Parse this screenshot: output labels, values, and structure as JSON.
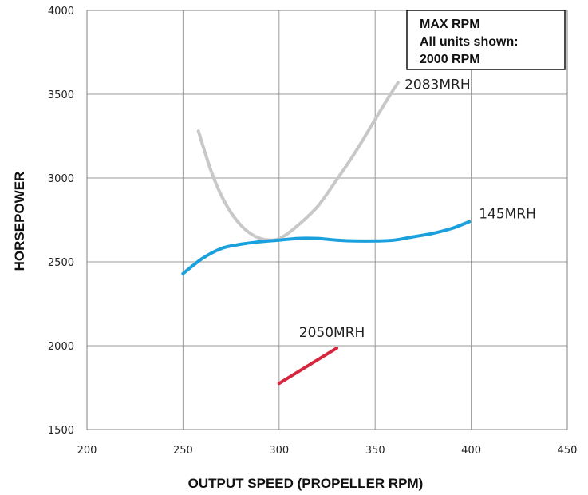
{
  "chart_data": {
    "type": "line",
    "xlabel": "OUTPUT SPEED (PROPELLER RPM)",
    "ylabel": "HORSEPOWER",
    "xlim": [
      200,
      450
    ],
    "ylim": [
      1500,
      4000
    ],
    "x_ticks": [
      200,
      250,
      300,
      350,
      400,
      450
    ],
    "y_ticks": [
      1500,
      2000,
      2500,
      3000,
      3500,
      4000
    ],
    "x_tick_labels": [
      "200",
      "250",
      "300",
      "350",
      "400",
      "450"
    ],
    "y_tick_labels": [
      "1500",
      "2000",
      "2500",
      "3000",
      "3500",
      "4000"
    ],
    "grid": true,
    "annotation_box": {
      "lines": [
        "MAX RPM",
        "All units shown:",
        "2000 RPM"
      ],
      "placement": "top-right"
    },
    "series": [
      {
        "name": "2083MRH",
        "color": "#c8c8c8",
        "x": [
          258,
          265,
          272,
          280,
          288,
          296,
          302,
          310,
          320,
          330,
          340,
          350,
          358,
          362
        ],
        "y": [
          3280,
          3030,
          2850,
          2720,
          2650,
          2630,
          2650,
          2720,
          2830,
          2990,
          3160,
          3350,
          3500,
          3570
        ]
      },
      {
        "name": "145MRH",
        "color": "#1aa1dd",
        "x": [
          250,
          260,
          270,
          280,
          290,
          300,
          310,
          320,
          330,
          340,
          350,
          360,
          370,
          380,
          390,
          399
        ],
        "y": [
          2430,
          2520,
          2580,
          2605,
          2620,
          2630,
          2640,
          2640,
          2630,
          2625,
          2625,
          2630,
          2650,
          2670,
          2700,
          2740
        ]
      },
      {
        "name": "2050MRH",
        "color": "#d6263e",
        "x": [
          300,
          330
        ],
        "y": [
          1775,
          1985
        ]
      }
    ]
  }
}
